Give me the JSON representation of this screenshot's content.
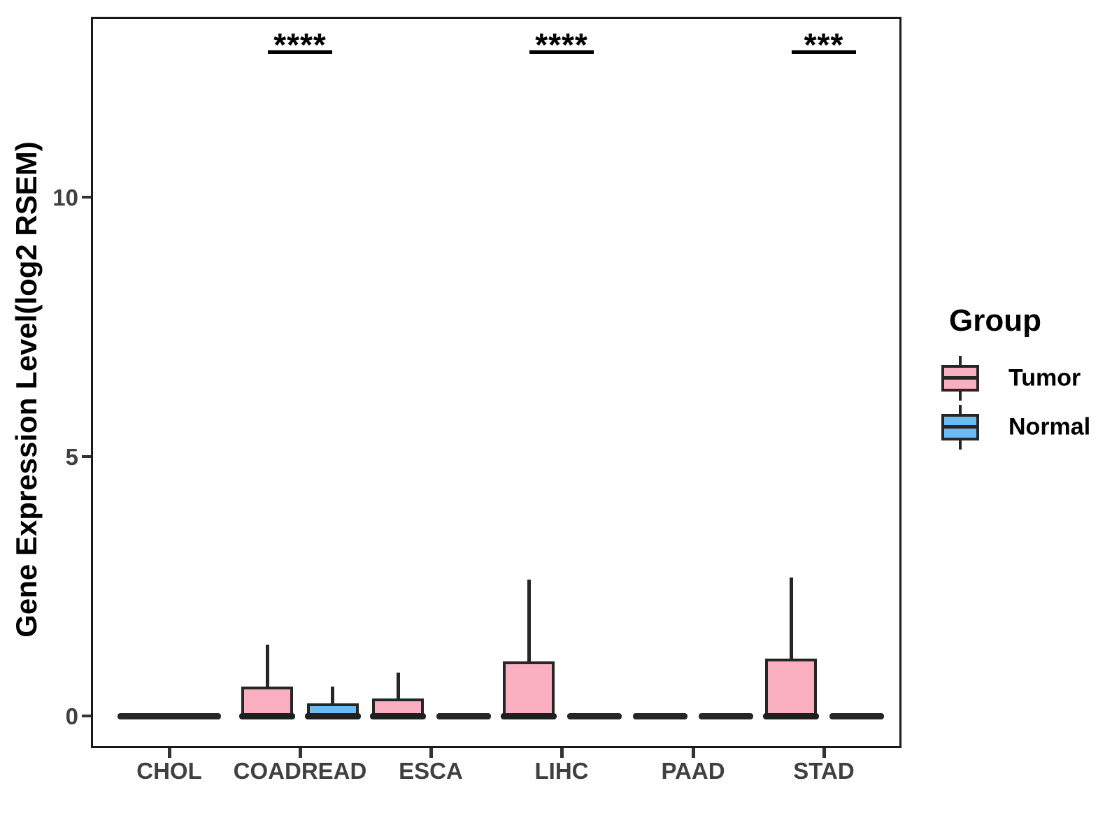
{
  "figure": {
    "background": "#ffffff"
  },
  "y_axis": {
    "title": "Gene Expression Level(log2 RSEM)",
    "ticks": [
      {
        "label": "0",
        "value": 0
      },
      {
        "label": "5",
        "value": 5
      },
      {
        "label": "10",
        "value": 10
      }
    ]
  },
  "x_axis": {
    "categories": [
      "CHOL",
      "COADREAD",
      "ESCA",
      "LIHC",
      "PAAD",
      "STAD"
    ]
  },
  "legend": {
    "title": "Group",
    "items": [
      {
        "label": "Tumor",
        "color": "#F9AFC0"
      },
      {
        "label": "Normal",
        "color": "#6DBBF3"
      }
    ]
  },
  "colors": {
    "tumor_fill": "#F9AFC0",
    "normal_fill": "#6DBBF3",
    "box_border": "#262626",
    "panel_border": "#1a1a1a",
    "axis_text": "#404040",
    "annotation": "#000000"
  },
  "chart_data": {
    "type": "boxplot",
    "title": "",
    "xlabel": "",
    "ylabel": "Gene Expression Level(log2 RSEM)",
    "ylim": [
      -0.62,
      13.5
    ],
    "yticks": [
      0,
      5,
      10
    ],
    "grid": false,
    "legend_position": "right",
    "categories": [
      "CHOL",
      "COADREAD",
      "ESCA",
      "LIHC",
      "PAAD",
      "STAD"
    ],
    "flat_merged_categories": [
      "CHOL"
    ],
    "series": [
      {
        "name": "Tumor",
        "color": "#F9AFC0",
        "boxes": [
          {
            "category": "CHOL",
            "median": 0,
            "q1": 0,
            "q3": 0,
            "whisker_low": 0,
            "whisker_high": 0
          },
          {
            "category": "COADREAD",
            "median": 0,
            "q1": 0,
            "q3": 0.57,
            "whisker_low": 0,
            "whisker_high": 1.37
          },
          {
            "category": "ESCA",
            "median": 0,
            "q1": 0,
            "q3": 0.34,
            "whisker_low": 0,
            "whisker_high": 0.83
          },
          {
            "category": "LIHC",
            "median": 0,
            "q1": 0,
            "q3": 1.05,
            "whisker_low": 0,
            "whisker_high": 2.63
          },
          {
            "category": "PAAD",
            "median": 0,
            "q1": 0,
            "q3": 0,
            "whisker_low": 0,
            "whisker_high": 0
          },
          {
            "category": "STAD",
            "median": 0,
            "q1": 0,
            "q3": 1.1,
            "whisker_low": 0,
            "whisker_high": 2.67
          }
        ]
      },
      {
        "name": "Normal",
        "color": "#6DBBF3",
        "boxes": [
          {
            "category": "CHOL",
            "median": 0,
            "q1": 0,
            "q3": 0,
            "whisker_low": 0,
            "whisker_high": 0
          },
          {
            "category": "COADREAD",
            "median": 0,
            "q1": 0,
            "q3": 0.24,
            "whisker_low": 0,
            "whisker_high": 0.57
          },
          {
            "category": "ESCA",
            "median": 0,
            "q1": 0,
            "q3": 0,
            "whisker_low": 0,
            "whisker_high": 0
          },
          {
            "category": "LIHC",
            "median": 0,
            "q1": 0,
            "q3": 0,
            "whisker_low": 0,
            "whisker_high": 0
          },
          {
            "category": "PAAD",
            "median": 0,
            "q1": 0,
            "q3": 0,
            "whisker_low": 0,
            "whisker_high": 0
          },
          {
            "category": "STAD",
            "median": 0,
            "q1": 0,
            "q3": 0,
            "whisker_low": 0,
            "whisker_high": 0
          }
        ]
      }
    ],
    "annotations": [
      {
        "category": "COADREAD",
        "text": "****"
      },
      {
        "category": "LIHC",
        "text": "****"
      },
      {
        "category": "STAD",
        "text": "***"
      }
    ]
  }
}
